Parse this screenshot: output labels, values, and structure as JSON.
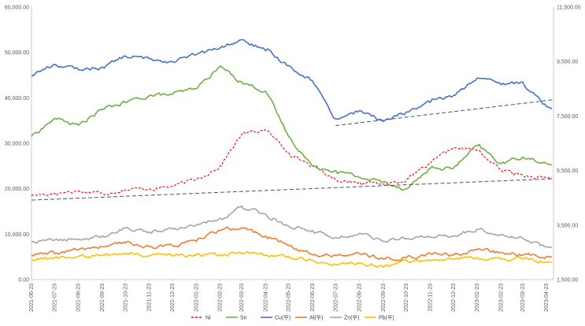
{
  "chart_data": {
    "type": "line",
    "title": "",
    "x": [
      "2021-06-23",
      "2021-07-23",
      "2021-08-23",
      "2021-09-23",
      "2021-10-23",
      "2021-11-23",
      "2021-12-23",
      "2022-01-23",
      "2022-02-23",
      "2022-03-23",
      "2022-04-23",
      "2022-05-23",
      "2022-06-23",
      "2022-07-23",
      "2022-08-23",
      "2022-09-23",
      "2022-10-23",
      "2022-11-23",
      "2022-12-23",
      "2023-01-23",
      "2023-02-23",
      "2023-03-23",
      "2023-04-23"
    ],
    "y_left": {
      "min": 0,
      "max": 60000,
      "step": 10000,
      "tick_labels": [
        "0.00",
        "10,000.00",
        "20,000.00",
        "30,000.00",
        "40,000.00",
        "50,000.00",
        "60,000.00"
      ]
    },
    "y_right": {
      "min": 1500,
      "max": 11500,
      "step": 2000,
      "tick_labels": [
        "1,500.00",
        "3,500.00",
        "5,500.00",
        "7,500.00",
        "9,500.00",
        "11,500.00"
      ]
    },
    "grid": false,
    "legend_position": "bottom",
    "series": [
      {
        "name": "Ni",
        "axis": "left",
        "color": "#ff0000",
        "dash": true,
        "values": [
          18500,
          19000,
          19500,
          19000,
          19800,
          20000,
          20500,
          22000,
          25000,
          32000,
          33000,
          28000,
          25000,
          22000,
          21500,
          21000,
          22000,
          25500,
          29000,
          28500,
          24000,
          23000,
          22500
        ]
      },
      {
        "name": "Sn",
        "axis": "left",
        "color": "#70ad47",
        "dash": false,
        "values": [
          31500,
          35500,
          34000,
          37500,
          39000,
          40500,
          40800,
          42000,
          47000,
          43500,
          41500,
          31500,
          25000,
          24000,
          22500,
          21500,
          20000,
          24500,
          24500,
          29500,
          25500,
          27000,
          25500
        ]
      },
      {
        "name": "Cu(우)",
        "axis": "right",
        "color": "#4472c4",
        "dash": false,
        "values": [
          9000,
          9400,
          9200,
          9300,
          9700,
          9600,
          9500,
          9750,
          10000,
          10300,
          9900,
          9350,
          8800,
          7400,
          7700,
          7300,
          7650,
          8000,
          8250,
          8900,
          8650,
          8750,
          7850
        ]
      },
      {
        "name": "Al(우)",
        "axis": "right",
        "color": "#ed7d31",
        "dash": false,
        "values": [
          2400,
          2450,
          2600,
          2700,
          2850,
          2700,
          2750,
          2900,
          3300,
          3400,
          3100,
          2750,
          2400,
          2400,
          2450,
          2250,
          2300,
          2450,
          2400,
          2600,
          2500,
          2400,
          2350
        ]
      },
      {
        "name": "Zn(우)",
        "axis": "right",
        "color": "#a5a5a5",
        "dash": false,
        "values": [
          2900,
          2950,
          2980,
          3100,
          3400,
          3250,
          3350,
          3500,
          3750,
          4200,
          3900,
          3450,
          3300,
          3050,
          3200,
          2900,
          3000,
          3050,
          3100,
          3350,
          3150,
          3000,
          2700
        ]
      },
      {
        "name": "Pb(우)",
        "axis": "right",
        "color": "#ffc000",
        "dash": false,
        "values": [
          2200,
          2300,
          2350,
          2400,
          2450,
          2380,
          2360,
          2400,
          2420,
          2450,
          2400,
          2350,
          2200,
          2050,
          2100,
          1950,
          2200,
          2200,
          2250,
          2300,
          2250,
          2250,
          2150
        ]
      }
    ],
    "trendlines": [
      {
        "axis": "left",
        "from": [
          "2021-06-23",
          17500
        ],
        "to": [
          "2023-05-02",
          22200
        ],
        "color": "#44546a",
        "dash": true
      },
      {
        "axis": "right",
        "from": [
          "2022-07-23",
          7150
        ],
        "to": [
          "2023-05-02",
          8100
        ],
        "color": "#44546a",
        "dash": true
      }
    ]
  }
}
